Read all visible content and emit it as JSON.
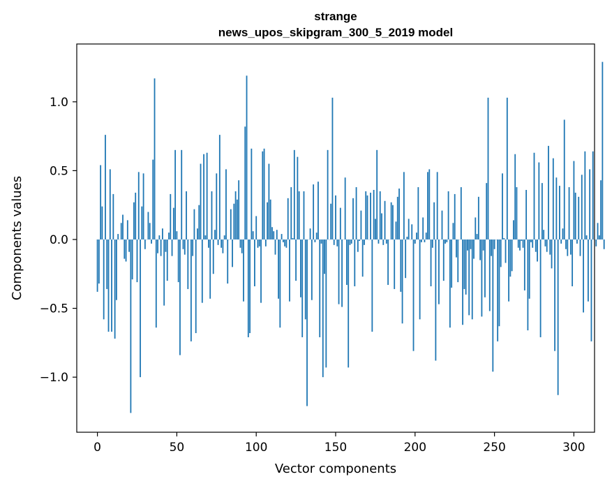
{
  "chart_data": {
    "type": "bar",
    "title_lines": [
      "strange",
      "news_upos_skipgram_300_5_2019 model"
    ],
    "xlabel": "Vector components",
    "ylabel": "Components values",
    "xlim": [
      -13,
      313
    ],
    "ylim": [
      -1.4,
      1.42
    ],
    "x_ticks": [
      {
        "value": 0,
        "label": "0"
      },
      {
        "value": 50,
        "label": "50"
      },
      {
        "value": 100,
        "label": "100"
      },
      {
        "value": 150,
        "label": "150"
      },
      {
        "value": 200,
        "label": "200"
      },
      {
        "value": 250,
        "label": "250"
      },
      {
        "value": 300,
        "label": "300"
      }
    ],
    "y_ticks": [
      {
        "value": -1.0,
        "label": "−1.0"
      },
      {
        "value": -0.5,
        "label": "−0.5"
      },
      {
        "value": 0.0,
        "label": "0.0"
      },
      {
        "value": 0.5,
        "label": "0.5"
      },
      {
        "value": 1.0,
        "label": "1.0"
      }
    ],
    "grid": false,
    "bar_color": "#1f77b4",
    "x_start": 0,
    "values": [
      -0.38,
      -0.32,
      0.54,
      0.24,
      -0.58,
      0.76,
      -0.36,
      -0.67,
      0.51,
      -0.67,
      0.33,
      -0.72,
      -0.44,
      0.04,
      0.0,
      0.12,
      0.18,
      -0.14,
      -0.16,
      0.14,
      -0.09,
      -1.26,
      -0.29,
      0.27,
      0.34,
      -0.31,
      0.49,
      -1.0,
      0.24,
      0.48,
      -0.07,
      0.0,
      0.2,
      0.12,
      -0.03,
      0.58,
      1.17,
      -0.64,
      -0.1,
      0.03,
      -0.12,
      0.08,
      -0.48,
      -0.09,
      -0.3,
      0.05,
      0.33,
      -0.12,
      0.23,
      0.65,
      0.06,
      -0.31,
      -0.84,
      0.65,
      -0.07,
      -0.11,
      0.35,
      -0.36,
      0.0,
      -0.74,
      -0.12,
      0.22,
      -0.68,
      0.08,
      0.25,
      0.55,
      -0.46,
      0.62,
      0.03,
      0.63,
      -0.06,
      -0.43,
      0.35,
      -0.25,
      0.07,
      0.48,
      -0.04,
      0.76,
      -0.06,
      -0.1,
      0.03,
      0.51,
      -0.32,
      0.0,
      0.22,
      -0.2,
      0.26,
      0.35,
      0.29,
      0.43,
      -0.06,
      -0.1,
      -0.45,
      0.82,
      1.19,
      -0.71,
      -0.68,
      0.66,
      0.06,
      -0.34,
      0.17,
      -0.06,
      -0.05,
      -0.46,
      0.64,
      0.66,
      -0.05,
      0.27,
      0.55,
      0.29,
      0.09,
      0.06,
      -0.11,
      0.07,
      -0.43,
      -0.64,
      0.04,
      -0.02,
      -0.05,
      -0.06,
      0.3,
      -0.45,
      0.38,
      0.01,
      0.65,
      -0.3,
      0.6,
      0.35,
      -0.42,
      -0.71,
      0.35,
      -0.58,
      -1.21,
      0.0,
      0.08,
      -0.44,
      0.4,
      -0.02,
      0.05,
      0.42,
      -0.71,
      -0.03,
      -1.0,
      -0.25,
      -0.93,
      0.65,
      0.0,
      0.26,
      1.03,
      -0.04,
      0.32,
      -0.05,
      -0.47,
      0.23,
      -0.49,
      0.0,
      0.45,
      -0.33,
      -0.93,
      -0.04,
      -0.03,
      0.3,
      -0.34,
      0.38,
      -0.09,
      -0.01,
      0.21,
      -0.27,
      -0.04,
      0.35,
      0.32,
      0.0,
      0.34,
      -0.67,
      0.36,
      0.15,
      0.65,
      -0.03,
      0.35,
      0.19,
      -0.04,
      0.28,
      -0.03,
      -0.33,
      0.0,
      0.27,
      0.25,
      -0.36,
      0.13,
      0.31,
      0.37,
      -0.38,
      -0.61,
      0.49,
      -0.28,
      0.02,
      0.15,
      0.0,
      0.11,
      -0.81,
      -0.03,
      0.05,
      0.38,
      -0.58,
      -0.02,
      0.16,
      -0.02,
      0.05,
      0.49,
      0.51,
      -0.34,
      -0.06,
      0.27,
      -0.88,
      0.49,
      -0.47,
      0.0,
      0.21,
      -0.3,
      -0.03,
      -0.02,
      0.35,
      -0.64,
      -0.35,
      0.12,
      0.33,
      -0.13,
      -0.31,
      0.0,
      0.38,
      -0.62,
      -0.36,
      -0.4,
      -0.08,
      -0.55,
      -0.07,
      -0.58,
      -0.14,
      0.16,
      0.04,
      0.31,
      -0.15,
      -0.56,
      -0.08,
      -0.42,
      0.41,
      1.03,
      -0.52,
      -0.12,
      -0.96,
      -0.07,
      0.0,
      -0.74,
      -0.63,
      -0.2,
      0.48,
      0.01,
      -0.17,
      1.03,
      -0.45,
      -0.27,
      -0.23,
      0.14,
      0.62,
      0.38,
      -0.06,
      -0.08,
      -0.01,
      -0.06,
      -0.37,
      0.36,
      -0.66,
      -0.43,
      -0.02,
      -0.06,
      0.63,
      -0.09,
      -0.16,
      0.56,
      -0.71,
      0.41,
      0.07,
      -0.05,
      -0.09,
      0.68,
      -0.11,
      -0.21,
      0.59,
      -0.81,
      0.45,
      -1.13,
      0.39,
      -0.03,
      0.08,
      0.87,
      -0.07,
      -0.12,
      0.38,
      -0.11,
      -0.34,
      0.57,
      0.34,
      -0.03,
      0.31,
      -0.12,
      0.47,
      -0.53,
      0.64,
      0.03,
      -0.45,
      0.51,
      -0.74,
      0.64,
      0.0,
      -0.05,
      0.12,
      0.03,
      0.43,
      1.29,
      -0.07
    ]
  }
}
